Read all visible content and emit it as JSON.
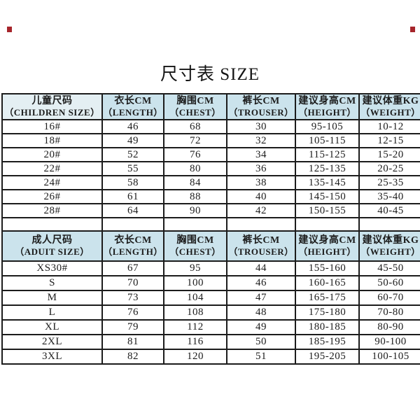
{
  "page": {
    "title": "尺寸表 SIZE"
  },
  "colors": {
    "header_bg": "#cbe3ec",
    "header_bg_light": "#e4eff3",
    "row_bg": "#ffffff",
    "border": "#1c1c1c",
    "text": "#1c1c1c",
    "red_mark": "#a6252b"
  },
  "column_names": [
    "size",
    "length",
    "chest",
    "trouser",
    "height",
    "weight"
  ],
  "children_table": {
    "headers": [
      {
        "zh": "儿童尺码",
        "en": "（CHILDREN SIZE）"
      },
      {
        "zh": "衣长CM",
        "en": "（LENGTH）"
      },
      {
        "zh": "胸围CM",
        "en": "（CHEST）"
      },
      {
        "zh": "裤长CM",
        "en": "（TROUSER）"
      },
      {
        "zh": "建议身高CM",
        "en": "（HEIGHT）"
      },
      {
        "zh": "建议体重KG",
        "en": "（WEIGHT）"
      }
    ],
    "rows": [
      [
        "16#",
        "46",
        "68",
        "30",
        "95-105",
        "10-12"
      ],
      [
        "18#",
        "49",
        "72",
        "32",
        "105-115",
        "12-15"
      ],
      [
        "20#",
        "52",
        "76",
        "34",
        "115-125",
        "15-20"
      ],
      [
        "22#",
        "55",
        "80",
        "36",
        "125-135",
        "20-25"
      ],
      [
        "24#",
        "58",
        "84",
        "38",
        "135-145",
        "25-35"
      ],
      [
        "26#",
        "61",
        "88",
        "40",
        "145-150",
        "35-40"
      ],
      [
        "28#",
        "64",
        "90",
        "42",
        "150-155",
        "40-45"
      ]
    ]
  },
  "adult_table": {
    "headers": [
      {
        "zh": "成人尺码",
        "en": "（ADUIT SIZE）"
      },
      {
        "zh": "衣长CM",
        "en": "（LENGTH）"
      },
      {
        "zh": "胸围CM",
        "en": "（CHEST）"
      },
      {
        "zh": "裤长CM",
        "en": "（TROUSER）"
      },
      {
        "zh": "建议身高CM",
        "en": "（HEIGHT）"
      },
      {
        "zh": "建议体重KG",
        "en": "（WEIGHT）"
      }
    ],
    "rows": [
      [
        "XS30#",
        "67",
        "95",
        "44",
        "155-160",
        "45-50"
      ],
      [
        "S",
        "70",
        "100",
        "46",
        "160-165",
        "50-60"
      ],
      [
        "M",
        "73",
        "104",
        "47",
        "165-175",
        "60-70"
      ],
      [
        "L",
        "76",
        "108",
        "48",
        "175-180",
        "70-80"
      ],
      [
        "XL",
        "79",
        "112",
        "49",
        "180-185",
        "80-90"
      ],
      [
        "2XL",
        "81",
        "116",
        "50",
        "185-195",
        "90-100"
      ],
      [
        "3XL",
        "82",
        "120",
        "51",
        "195-205",
        "100-105"
      ]
    ]
  }
}
